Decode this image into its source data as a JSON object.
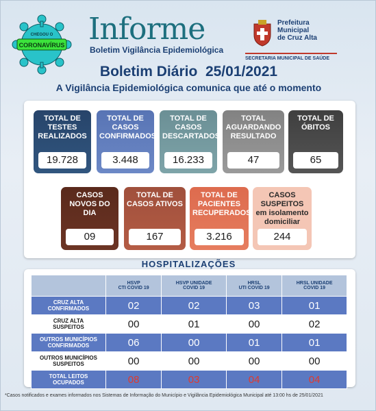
{
  "header": {
    "badge_top": "CHEGOU O",
    "badge_main": "CORONAVÍRUS",
    "title": "Informe",
    "subtitle": "Boletim Vigilância Epidemiológica",
    "pref_line1": "Prefeitura",
    "pref_line2": "Municipal",
    "pref_line3": "de Cruz Alta",
    "secretaria": "SECRETARIA MUNICIPAL DE SAÚDE"
  },
  "boletim": {
    "title": "Boletim Diário",
    "date": "25/01/2021"
  },
  "intro": "A Vigilância Epidemiológica comunica que até o momento",
  "cards": [
    {
      "label": "TOTAL DE TESTES REALIZADOS",
      "value": "19.728"
    },
    {
      "label": "TOTAL DE CASOS CONFIRMADOS",
      "value": "3.448"
    },
    {
      "label": "TOTAL DE CASOS DESCARTADOS",
      "value": "16.233"
    },
    {
      "label": "TOTAL AGUARDANDO RESULTADO",
      "value": "47"
    },
    {
      "label": "TOTAL DE ÓBITOS",
      "value": "65"
    },
    {
      "label": "CASOS NOVOS DO DIA",
      "value": "09"
    },
    {
      "label": "TOTAL DE CASOS ATIVOS",
      "value": "167"
    },
    {
      "label": "TOTAL DE PACIENTES RECUPERADOS",
      "value": "3.216"
    },
    {
      "label": "CASOS SUSPEITOS em isolamento domiciliar",
      "value": "244"
    }
  ],
  "hospital": {
    "title": "HOSPITALIZAÇÕES",
    "columns": [
      [
        "HSVP",
        "CTI COVID 19"
      ],
      [
        "HSVP UNIDADE",
        "COVID 19"
      ],
      [
        "HRSL",
        "UTI COVID 19"
      ],
      [
        "HRSL UNIDADE",
        "COVID 19"
      ]
    ],
    "rows": [
      {
        "label": [
          "CRUZ ALTA",
          "CONFIRMADOS"
        ],
        "values": [
          "02",
          "02",
          "03",
          "01"
        ]
      },
      {
        "label": [
          "CRUZ ALTA",
          "SUSPEITOS"
        ],
        "values": [
          "00",
          "01",
          "00",
          "02"
        ]
      },
      {
        "label": [
          "OUTROS MUNICÍPIOS",
          "CONFIRMADOS"
        ],
        "values": [
          "06",
          "00",
          "01",
          "01"
        ]
      },
      {
        "label": [
          "OUTROS MUNICÍPIOS",
          "SUSPEITOS"
        ],
        "values": [
          "00",
          "00",
          "00",
          "00"
        ]
      },
      {
        "label": [
          "TOTAL LEITOS",
          "OCUPADOS"
        ],
        "values": [
          "08",
          "03",
          "04",
          "04"
        ]
      }
    ]
  },
  "footnote": "*Casos notificados e exames informados nos Sistemas de Informação do Município e Vigilância Epidemiológica  Municipal até 13:00 hs de 25/01/2021",
  "colors": {
    "navy": "#1b3f73",
    "teal": "#1d6f7e",
    "row_blue": "#5b79c2",
    "alert_red": "#e03a2e"
  }
}
